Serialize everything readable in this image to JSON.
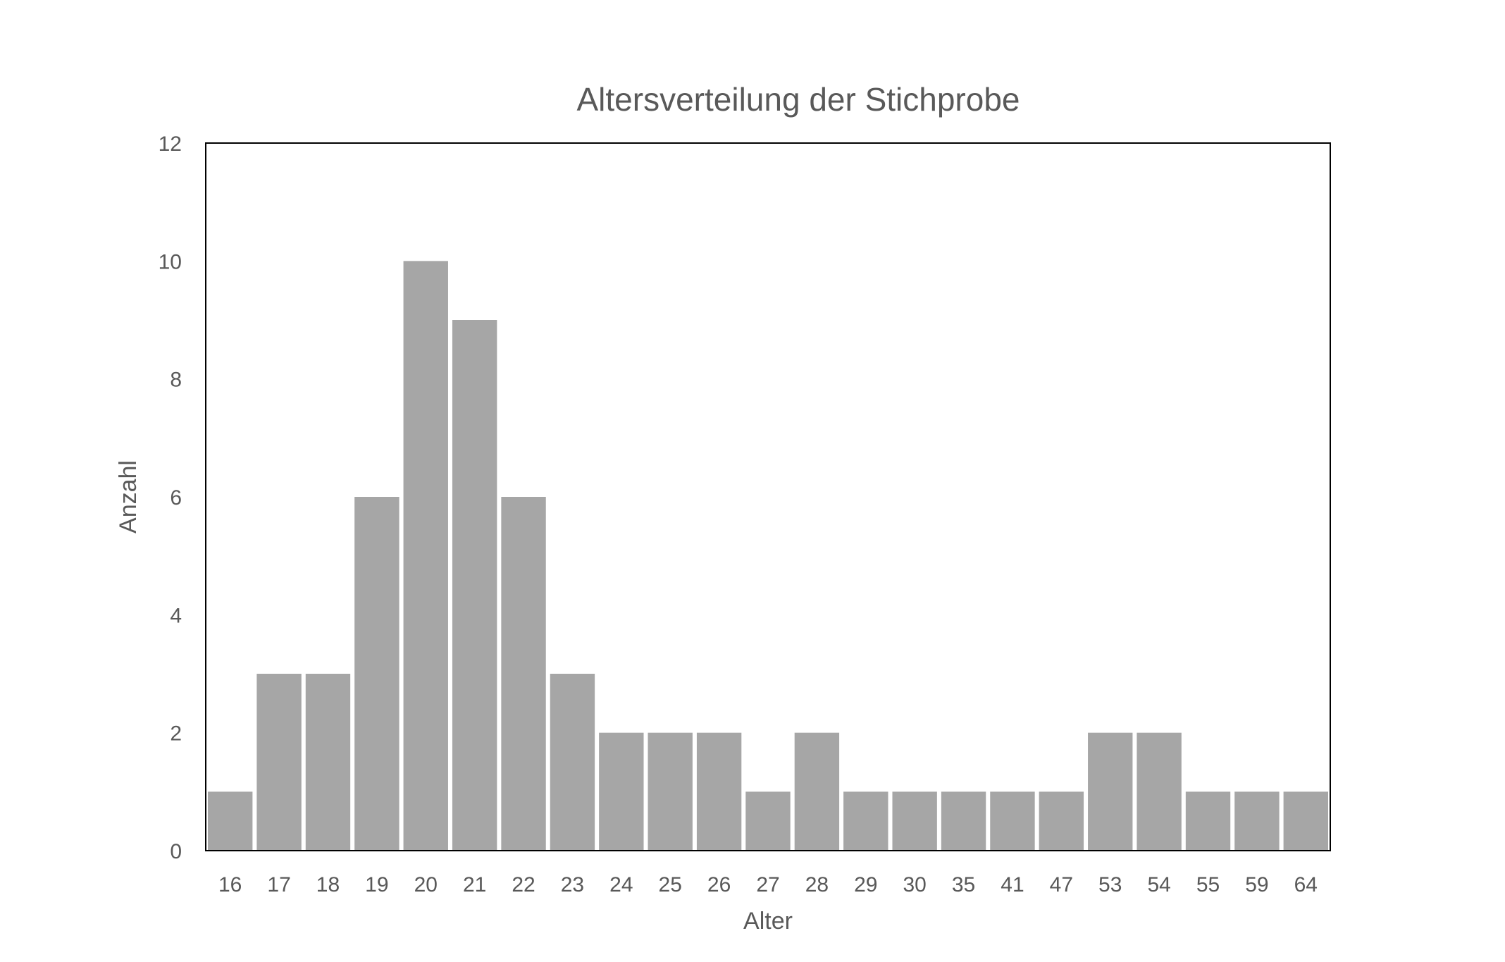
{
  "chart_data": {
    "type": "bar",
    "title": "Altersverteilung der Stichprobe",
    "xlabel": "Alter",
    "ylabel": "Anzahl",
    "categories": [
      "16",
      "17",
      "18",
      "19",
      "20",
      "21",
      "22",
      "23",
      "24",
      "25",
      "26",
      "27",
      "28",
      "29",
      "30",
      "35",
      "41",
      "47",
      "53",
      "54",
      "55",
      "59",
      "64"
    ],
    "values": [
      1,
      3,
      3,
      6,
      10,
      9,
      6,
      3,
      2,
      2,
      2,
      1,
      2,
      1,
      1,
      1,
      1,
      1,
      2,
      2,
      1,
      1,
      1
    ],
    "ylim": [
      0,
      12
    ],
    "yticks": [
      "0",
      "2",
      "4",
      "6",
      "8",
      "10",
      "12"
    ],
    "grid": false,
    "legend": "none",
    "colors": {
      "bar": "#a6a6a6",
      "text": "#595959",
      "frame": "#000000"
    }
  }
}
